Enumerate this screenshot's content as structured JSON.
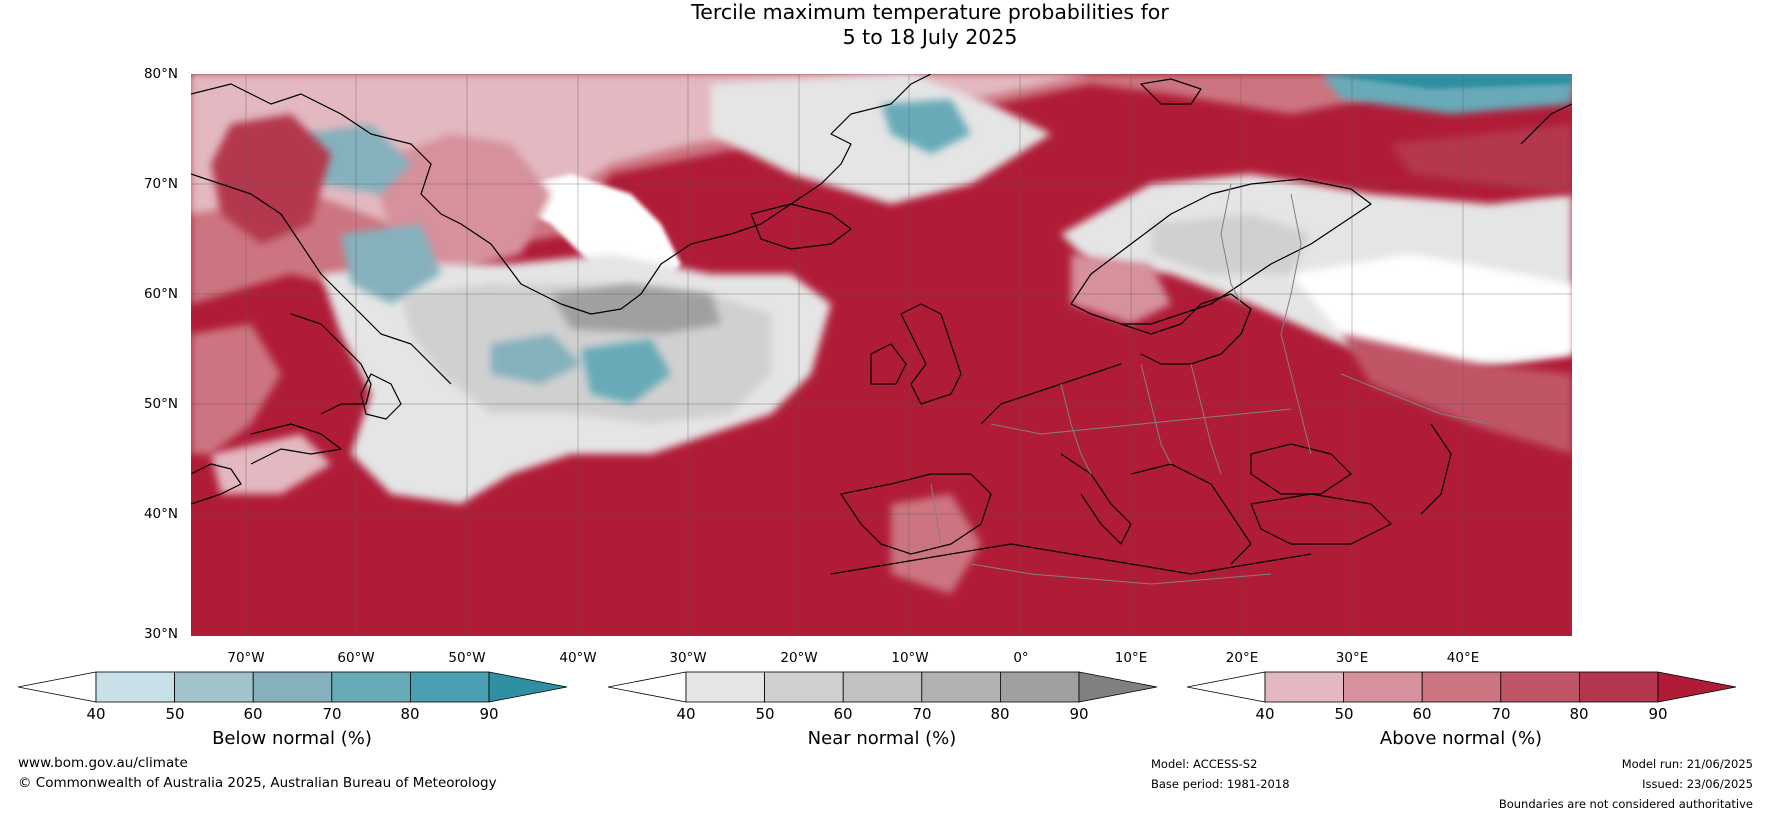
{
  "title": {
    "line1": "Tercile maximum temperature probabilities for",
    "line2": "5 to 18 July 2025"
  },
  "map": {
    "latitude_labels": [
      "80°N",
      "70°N",
      "60°N",
      "50°N",
      "40°N",
      "30°N"
    ],
    "longitude_labels": [
      "70°W",
      "60°W",
      "50°W",
      "40°W",
      "30°W",
      "20°W",
      "10°W",
      "0°",
      "10°E",
      "20°E",
      "30°E",
      "40°E"
    ],
    "colors": {
      "ocean_deep_red": "#b01c38",
      "land_border": "#000000",
      "country_border": "#808080"
    }
  },
  "colorbars": [
    {
      "label": "Below normal (%)",
      "ticks": [
        "40",
        "50",
        "60",
        "70",
        "80",
        "90"
      ],
      "colors": [
        "#ffffff",
        "#c8e0e7",
        "#a3c3cc",
        "#85b1bd",
        "#67aab8",
        "#4aa0b2",
        "#2f8fa3"
      ]
    },
    {
      "label": "Near normal (%)",
      "ticks": [
        "40",
        "50",
        "60",
        "70",
        "80",
        "90"
      ],
      "colors": [
        "#ffffff",
        "#e5e5e5",
        "#d0d0d0",
        "#c1c1c1",
        "#b2b2b2",
        "#a0a0a0",
        "#808080"
      ]
    },
    {
      "label": "Above normal (%)",
      "ticks": [
        "40",
        "50",
        "60",
        "70",
        "80",
        "90"
      ],
      "colors": [
        "#ffffff",
        "#e3b8c0",
        "#d6919c",
        "#cc7480",
        "#c05566",
        "#b4384d",
        "#b01c38"
      ]
    }
  ],
  "footer": {
    "website": "www.bom.gov.au/climate",
    "copyright": "© Commonwealth of Australia 2025, Australian Bureau of Meteorology",
    "model": "Model: ACCESS-S2",
    "base_period": "Base period: 1981-2018",
    "model_run": "Model run: 21/06/2025",
    "issued": "Issued: 23/06/2025",
    "disclaimer": "Boundaries are not considered authoritative"
  }
}
